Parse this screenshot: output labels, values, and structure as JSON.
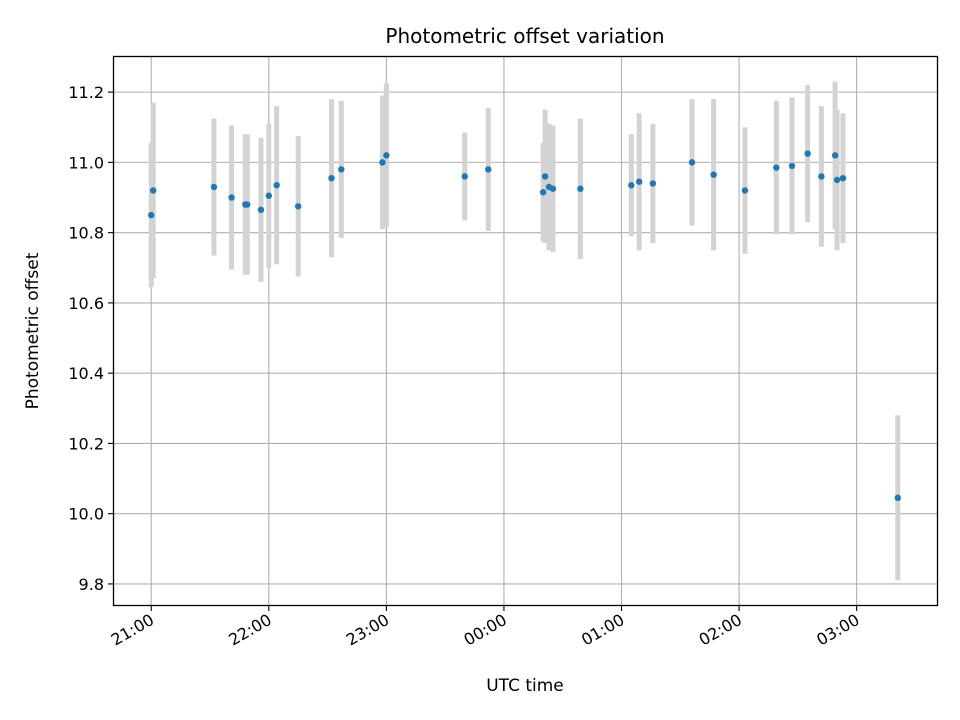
{
  "chart_data": {
    "type": "scatter",
    "title": "Photometric offset variation",
    "xlabel": "UTC time",
    "ylabel": "Photometric offset",
    "x_unit": "UTC time, shown as HH:MM with times past midnight written as 24:MM and beyond",
    "xlim": [
      "20:41",
      "27:41"
    ],
    "ylim": [
      9.74,
      11.3
    ],
    "x_ticks": [
      "21:00",
      "22:00",
      "23:00",
      "00:00",
      "01:00",
      "02:00",
      "03:00"
    ],
    "y_ticks": [
      "9.8",
      "10.0",
      "10.2",
      "10.4",
      "10.6",
      "10.8",
      "11.0",
      "11.2"
    ],
    "grid": true,
    "marker_color": "#1f77b4",
    "errorbar_color": "#d3d3d3",
    "points": [
      {
        "x": "21:00",
        "y": 10.85,
        "err": 0.205
      },
      {
        "x": "21:01",
        "y": 10.92,
        "err": 0.25
      },
      {
        "x": "21:32",
        "y": 10.93,
        "err": 0.195
      },
      {
        "x": "21:41",
        "y": 10.9,
        "err": 0.205
      },
      {
        "x": "21:48",
        "y": 10.88,
        "err": 0.2
      },
      {
        "x": "21:49",
        "y": 10.88,
        "err": 0.2
      },
      {
        "x": "21:56",
        "y": 10.865,
        "err": 0.205
      },
      {
        "x": "22:00",
        "y": 10.905,
        "err": 0.205
      },
      {
        "x": "22:04",
        "y": 10.935,
        "err": 0.225
      },
      {
        "x": "22:15",
        "y": 10.875,
        "err": 0.2
      },
      {
        "x": "22:32",
        "y": 10.955,
        "err": 0.225
      },
      {
        "x": "22:37",
        "y": 10.98,
        "err": 0.195
      },
      {
        "x": "22:58",
        "y": 11.0,
        "err": 0.19
      },
      {
        "x": "23:00",
        "y": 11.02,
        "err": 0.205
      },
      {
        "x": "23:40",
        "y": 10.96,
        "err": 0.125
      },
      {
        "x": "23:52",
        "y": 10.98,
        "err": 0.175
      },
      {
        "x": "24:20",
        "y": 10.915,
        "err": 0.14
      },
      {
        "x": "24:21",
        "y": 10.96,
        "err": 0.19
      },
      {
        "x": "24:23",
        "y": 10.93,
        "err": 0.18
      },
      {
        "x": "24:25",
        "y": 10.925,
        "err": 0.18
      },
      {
        "x": "24:39",
        "y": 10.925,
        "err": 0.2
      },
      {
        "x": "25:05",
        "y": 10.935,
        "err": 0.145
      },
      {
        "x": "25:09",
        "y": 10.945,
        "err": 0.195
      },
      {
        "x": "25:16",
        "y": 10.94,
        "err": 0.17
      },
      {
        "x": "25:36",
        "y": 11.0,
        "err": 0.18
      },
      {
        "x": "25:47",
        "y": 10.965,
        "err": 0.215
      },
      {
        "x": "26:03",
        "y": 10.92,
        "err": 0.18
      },
      {
        "x": "26:19",
        "y": 10.985,
        "err": 0.19
      },
      {
        "x": "26:27",
        "y": 10.99,
        "err": 0.195
      },
      {
        "x": "26:35",
        "y": 11.025,
        "err": 0.195
      },
      {
        "x": "26:42",
        "y": 10.96,
        "err": 0.2
      },
      {
        "x": "26:49",
        "y": 11.02,
        "err": 0.21
      },
      {
        "x": "26:50",
        "y": 10.95,
        "err": 0.2
      },
      {
        "x": "26:53",
        "y": 10.955,
        "err": 0.185
      },
      {
        "x": "27:21",
        "y": 10.045,
        "err": 0.235
      }
    ]
  }
}
